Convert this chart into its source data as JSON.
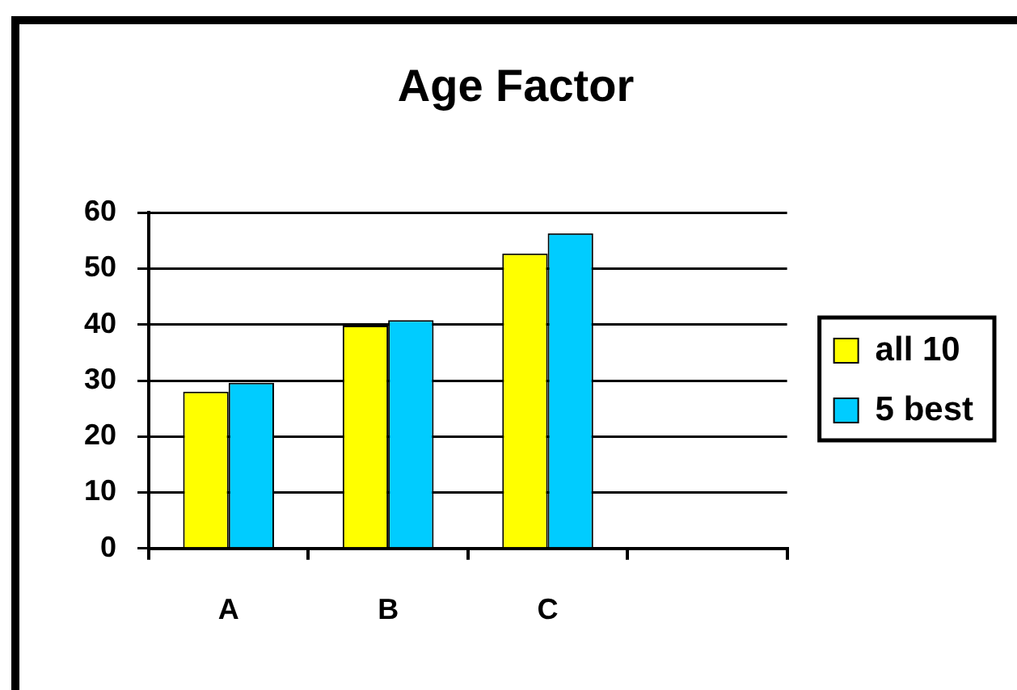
{
  "chart_data": {
    "type": "bar",
    "title": "Age Factor",
    "categories": [
      "A",
      "B",
      "C",
      null
    ],
    "series": [
      {
        "name": "all 10",
        "color": "#ffff00",
        "values": [
          28,
          39.8,
          52.7,
          null
        ]
      },
      {
        "name": "5 best",
        "color": "#00ccff",
        "values": [
          29.6,
          40.8,
          56.3,
          null
        ]
      }
    ],
    "ylim": [
      0,
      60
    ],
    "yticks": [
      0,
      10,
      20,
      30,
      40,
      50,
      60
    ],
    "grid": "y",
    "legend": "right"
  }
}
